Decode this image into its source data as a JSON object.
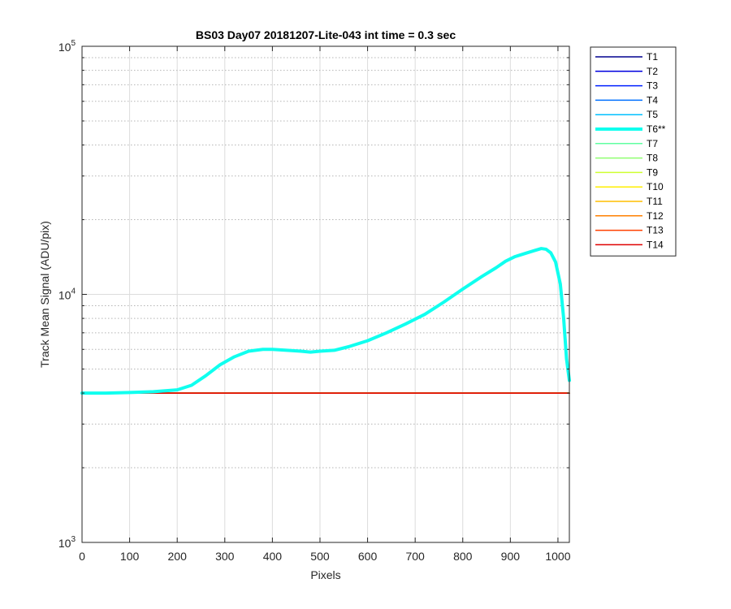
{
  "chart_data": {
    "type": "line",
    "title": "BS03 Day07 20181207-Lite-043 int time = 0.3 sec",
    "xlabel": "Pixels",
    "ylabel": "Track Mean Signal (ADU/pix)",
    "xlim": [
      0,
      1024
    ],
    "ylim": [
      1000,
      100000
    ],
    "yscale": "log",
    "grid": true,
    "legend_position": "outside-right",
    "x_ticks": [
      "0",
      "100",
      "200",
      "300",
      "400",
      "500",
      "600",
      "700",
      "800",
      "900",
      "1000"
    ],
    "y_ticks": [
      {
        "value": 1000,
        "base": "10",
        "exp": "3"
      },
      {
        "value": 10000,
        "base": "10",
        "exp": "4"
      },
      {
        "value": 100000,
        "base": "10",
        "exp": "5"
      }
    ],
    "series": [
      {
        "name": "T1",
        "color": "#00008f",
        "highlight": false,
        "x": [
          0,
          1024
        ],
        "y": [
          4000,
          4000
        ]
      },
      {
        "name": "T2",
        "color": "#0000df",
        "highlight": false,
        "x": [
          0,
          1024
        ],
        "y": [
          4000,
          4000
        ]
      },
      {
        "name": "T3",
        "color": "#0020ff",
        "highlight": false,
        "x": [
          0,
          1024
        ],
        "y": [
          4000,
          4000
        ]
      },
      {
        "name": "T4",
        "color": "#0070ff",
        "highlight": false,
        "x": [
          0,
          1024
        ],
        "y": [
          4000,
          4000
        ]
      },
      {
        "name": "T5",
        "color": "#00bfff",
        "highlight": false,
        "x": [
          0,
          1024
        ],
        "y": [
          4000,
          4000
        ]
      },
      {
        "name": "T6**",
        "color": "#10ffef",
        "highlight": true,
        "x": [
          0,
          50,
          100,
          150,
          200,
          230,
          260,
          290,
          320,
          350,
          380,
          400,
          430,
          460,
          480,
          500,
          530,
          560,
          600,
          640,
          680,
          720,
          760,
          800,
          840,
          870,
          890,
          910,
          930,
          950,
          965,
          975,
          985,
          995,
          1005,
          1012,
          1018,
          1024
        ],
        "y": [
          4000,
          4000,
          4020,
          4050,
          4120,
          4300,
          4700,
          5200,
          5600,
          5900,
          6000,
          6000,
          5950,
          5900,
          5850,
          5900,
          5950,
          6150,
          6500,
          7000,
          7600,
          8300,
          9300,
          10500,
          11800,
          12800,
          13600,
          14200,
          14600,
          15000,
          15300,
          15200,
          14700,
          13500,
          11000,
          8000,
          5500,
          4500
        ]
      },
      {
        "name": "T7",
        "color": "#60ffa0",
        "highlight": false,
        "x": [
          0,
          1024
        ],
        "y": [
          4000,
          4000
        ]
      },
      {
        "name": "T8",
        "color": "#8fff70",
        "highlight": false,
        "x": [
          0,
          1024
        ],
        "y": [
          4000,
          4000
        ]
      },
      {
        "name": "T9",
        "color": "#cfff30",
        "highlight": false,
        "x": [
          0,
          1024
        ],
        "y": [
          4000,
          4000
        ]
      },
      {
        "name": "T10",
        "color": "#ffef00",
        "highlight": false,
        "x": [
          0,
          1024
        ],
        "y": [
          4000,
          4000
        ]
      },
      {
        "name": "T11",
        "color": "#ffbf00",
        "highlight": false,
        "x": [
          0,
          1024
        ],
        "y": [
          4000,
          4000
        ]
      },
      {
        "name": "T12",
        "color": "#ff8000",
        "highlight": false,
        "x": [
          0,
          1024
        ],
        "y": [
          4000,
          4000
        ]
      },
      {
        "name": "T13",
        "color": "#ff4000",
        "highlight": false,
        "x": [
          0,
          1024
        ],
        "y": [
          4000,
          4000
        ]
      },
      {
        "name": "T14",
        "color": "#df0000",
        "highlight": false,
        "x": [
          0,
          1024
        ],
        "y": [
          4000,
          4000
        ]
      }
    ]
  }
}
